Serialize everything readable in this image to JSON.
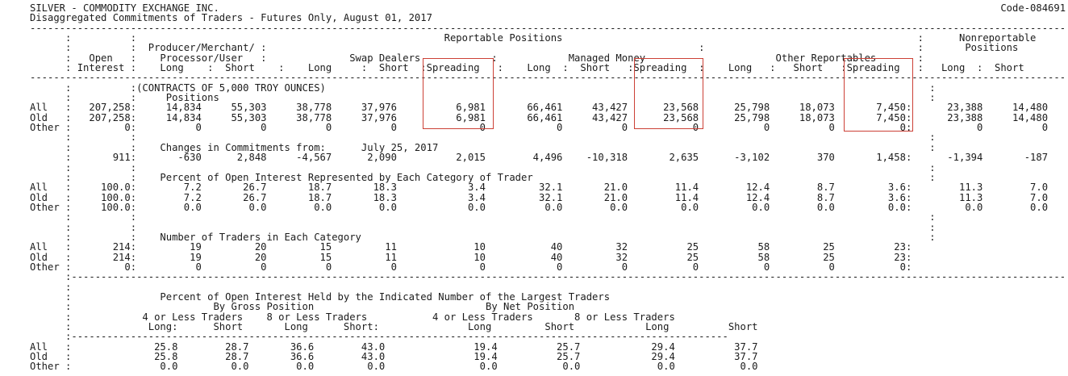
{
  "title": "SILVER - COMMODITY EXCHANGE INC.",
  "code": "Code-084691",
  "subtitle": "Disaggregated Commitments of Traders - Futures Only, August 01, 2017",
  "header": {
    "reportable": "Reportable Positions",
    "nonreportable_1": "Nonreportable",
    "nonreportable_2": "Positions",
    "producer_1": "Producer/Merchant/",
    "producer_2": "Processor/User",
    "open_1": "Open",
    "open_2": "Interest",
    "swap": "Swap Dealers",
    "managed": "Managed Money",
    "other_rep": "Other Reportables",
    "long": "Long",
    "short": "Short",
    "spreading": "Spreading"
  },
  "sections": {
    "contracts_note": "(CONTRACTS OF 5,000 TROY OUNCES)",
    "positions_label": "Positions",
    "changes_label": "Changes in Commitments from:",
    "changes_date": "July 25, 2017",
    "percent_label": "Percent of Open Interest Represented by Each Category of Trader",
    "traders_label": "Number of Traders in Each Category",
    "held_label": "Percent of Open Interest Held by the Indicated Number of the Largest Traders",
    "by_gross": "By Gross Position",
    "by_net": "By Net Position",
    "four_or_less": "4 or Less Traders",
    "eight_or_less": "8 or Less Traders"
  },
  "rows": {
    "positions": [
      {
        "label": "All",
        "oi": "207,258",
        "vals": [
          "14,834",
          "55,303",
          "38,778",
          "37,976",
          "6,981",
          "66,461",
          "43,427",
          "23,568",
          "25,798",
          "18,073",
          "7,450"
        ],
        "nr": [
          "23,388",
          "14,480"
        ]
      },
      {
        "label": "Old",
        "oi": "207,258",
        "vals": [
          "14,834",
          "55,303",
          "38,778",
          "37,976",
          "6,981",
          "66,461",
          "43,427",
          "23,568",
          "25,798",
          "18,073",
          "7,450"
        ],
        "nr": [
          "23,388",
          "14,480"
        ]
      },
      {
        "label": "Other",
        "oi": "0",
        "vals": [
          "0",
          "0",
          "0",
          "0",
          "0",
          "0",
          "0",
          "0",
          "0",
          "0",
          "0"
        ],
        "nr": [
          "0",
          "0"
        ]
      }
    ],
    "changes": {
      "label": "",
      "oi": "911",
      "vals": [
        "-630",
        "2,848",
        "-4,567",
        "2,090",
        "2,015",
        "4,496",
        "-10,318",
        "2,635",
        "-3,102",
        "370",
        "1,458"
      ],
      "nr": [
        "-1,394",
        "-187"
      ]
    },
    "percent": [
      {
        "label": "All",
        "oi": "100.0",
        "vals": [
          "7.2",
          "26.7",
          "18.7",
          "18.3",
          "3.4",
          "32.1",
          "21.0",
          "11.4",
          "12.4",
          "8.7",
          "3.6"
        ],
        "nr": [
          "11.3",
          "7.0"
        ]
      },
      {
        "label": "Old",
        "oi": "100.0",
        "vals": [
          "7.2",
          "26.7",
          "18.7",
          "18.3",
          "3.4",
          "32.1",
          "21.0",
          "11.4",
          "12.4",
          "8.7",
          "3.6"
        ],
        "nr": [
          "11.3",
          "7.0"
        ]
      },
      {
        "label": "Other",
        "oi": "100.0",
        "vals": [
          "0.0",
          "0.0",
          "0.0",
          "0.0",
          "0.0",
          "0.0",
          "0.0",
          "0.0",
          "0.0",
          "0.0",
          "0.0"
        ],
        "nr": [
          "0.0",
          "0.0"
        ]
      }
    ],
    "traders": [
      {
        "label": "All",
        "oi": "214",
        "vals": [
          "19",
          "20",
          "15",
          "11",
          "10",
          "40",
          "32",
          "25",
          "58",
          "25",
          "23"
        ],
        "nr": [
          "",
          ""
        ]
      },
      {
        "label": "Old",
        "oi": "214",
        "vals": [
          "19",
          "20",
          "15",
          "11",
          "10",
          "40",
          "32",
          "25",
          "58",
          "25",
          "23"
        ],
        "nr": [
          "",
          ""
        ]
      },
      {
        "label": "Other",
        "oi": "0",
        "vals": [
          "0",
          "0",
          "0",
          "0",
          "0",
          "0",
          "0",
          "0",
          "0",
          "0",
          "0"
        ],
        "nr": [
          "",
          ""
        ]
      }
    ],
    "concentration": [
      {
        "label": "All",
        "vals": [
          "25.8",
          "28.7",
          "36.6",
          "43.0",
          "19.4",
          "25.7",
          "29.4",
          "37.7"
        ]
      },
      {
        "label": "Old",
        "vals": [
          "25.8",
          "28.7",
          "36.6",
          "43.0",
          "19.4",
          "25.7",
          "29.4",
          "37.7"
        ]
      },
      {
        "label": "Other",
        "vals": [
          "0.0",
          "0.0",
          "0.0",
          "0.0",
          "0.0",
          "0.0",
          "0.0",
          "0.0"
        ]
      }
    ]
  },
  "highlight_color": "#cc4036"
}
